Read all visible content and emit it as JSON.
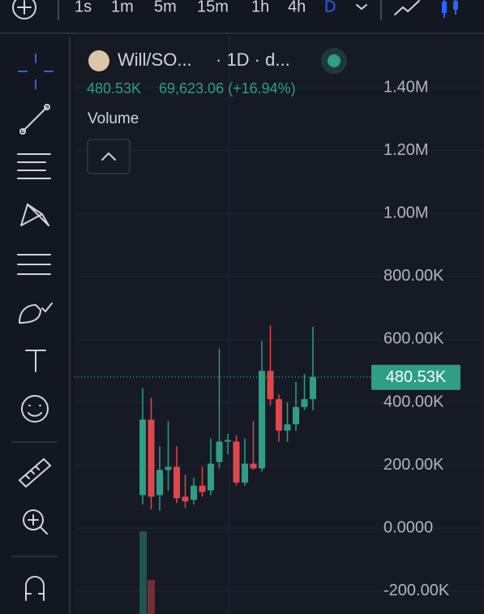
{
  "toolbar": {
    "intervals": [
      "1s",
      "1m",
      "5m",
      "15m",
      "1h",
      "4h",
      "D"
    ]
  },
  "legend": {
    "symbol": "Will/SO...",
    "interval": "· 1D · d...",
    "price": "480.53K",
    "change": "69,623.06 (+16.94%)",
    "indicator": "Volume"
  },
  "chart_data": {
    "type": "candlestick",
    "up_color": "#2e9e84",
    "down_color": "#e0474c",
    "grid": true,
    "ylim": [
      -273000,
      1563000
    ],
    "yticks": [
      {
        "value": 1400000,
        "label": "1.40M"
      },
      {
        "value": 1200000,
        "label": "1.20M"
      },
      {
        "value": 1000000,
        "label": "1.00M"
      },
      {
        "value": 800000,
        "label": "800.00K"
      },
      {
        "value": 600000,
        "label": "600.00K"
      },
      {
        "value": 400000,
        "label": "400.00K"
      },
      {
        "value": 200000,
        "label": "200.00K"
      },
      {
        "value": 0,
        "label": "0.0000"
      },
      {
        "value": -200000,
        "label": "-200.00K"
      }
    ],
    "open": [
      105000,
      345000,
      105000,
      185000,
      195000,
      100000,
      90000,
      135000,
      120000,
      210000,
      275000,
      275000,
      145000,
      205000,
      190000,
      500000,
      410000,
      310000,
      330000,
      385000,
      410000
    ],
    "high": [
      445000,
      415000,
      260000,
      340000,
      260000,
      170000,
      160000,
      195000,
      285000,
      570000,
      300000,
      295000,
      285000,
      340000,
      595000,
      645000,
      425000,
      400000,
      465000,
      490000,
      640000
    ],
    "low": [
      75000,
      60000,
      55000,
      120000,
      80000,
      65000,
      75000,
      100000,
      105000,
      190000,
      235000,
      135000,
      135000,
      185000,
      180000,
      390000,
      275000,
      275000,
      310000,
      375000,
      375000
    ],
    "close": [
      345000,
      100000,
      185000,
      195000,
      95000,
      85000,
      135000,
      115000,
      205000,
      275000,
      280000,
      145000,
      205000,
      190000,
      500000,
      410000,
      310000,
      330000,
      385000,
      410000,
      480530
    ],
    "last_price": {
      "value": 480530,
      "label": "480.53K"
    }
  }
}
